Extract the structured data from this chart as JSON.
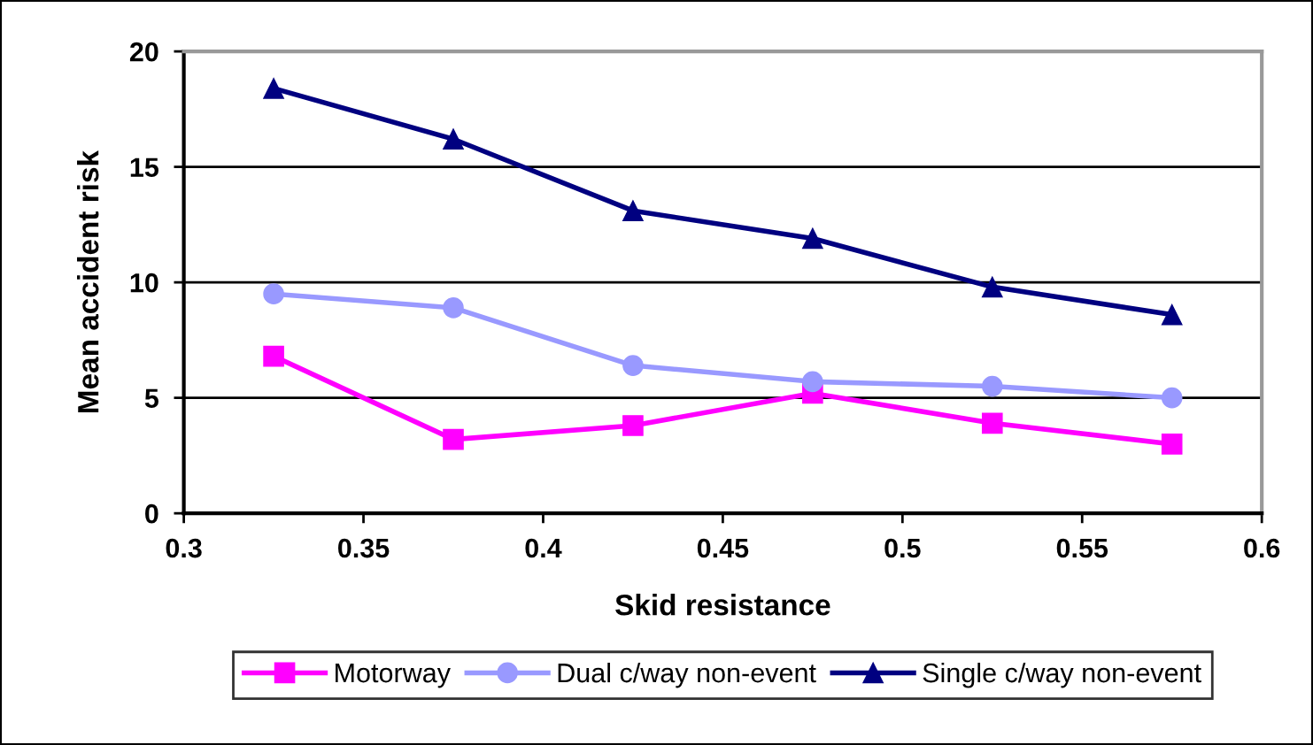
{
  "chart_data": {
    "type": "line",
    "xlabel": "Skid resistance",
    "ylabel": "Mean accident risk",
    "x": [
      0.325,
      0.375,
      0.425,
      0.475,
      0.525,
      0.575
    ],
    "series": [
      {
        "name": "Motorway",
        "color": "#ff00ff",
        "marker": "square",
        "values": [
          6.8,
          3.2,
          3.8,
          5.2,
          3.9,
          3.0
        ]
      },
      {
        "name": "Dual c/way non-event",
        "color": "#9999ff",
        "marker": "circle",
        "values": [
          9.5,
          8.9,
          6.4,
          5.7,
          5.5,
          5.0
        ]
      },
      {
        "name": "Single c/way non-event",
        "color": "#000080",
        "marker": "triangle",
        "values": [
          18.4,
          16.2,
          13.1,
          11.9,
          9.8,
          8.6
        ]
      }
    ],
    "xlim": [
      0.3,
      0.6
    ],
    "xticks": [
      0.3,
      0.35,
      0.4,
      0.45,
      0.5,
      0.55,
      0.6
    ],
    "ylim": [
      0,
      20
    ],
    "yticks": [
      0,
      5,
      10,
      15,
      20
    ],
    "grid": "y",
    "legend": "bottom",
    "line_style": "solid"
  }
}
